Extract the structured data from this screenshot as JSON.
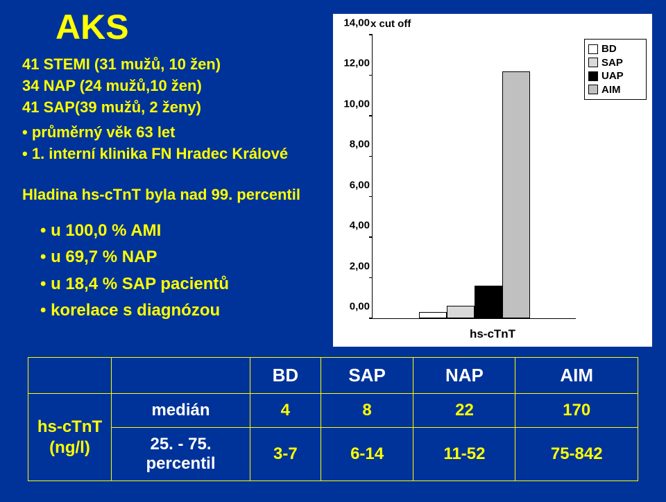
{
  "title": "AKS",
  "lines": {
    "l1": "41 STEMI (31 mužů, 10 žen)",
    "l2": "34 NAP (24 mužů,10 žen)",
    "l3": "41 SAP(39 mužů, 2 ženy)"
  },
  "bullets1": {
    "b1": "průměrný věk 63 let",
    "b2": "1. interní klinika FN Hradec Králové"
  },
  "subhead": "Hladina hs-cTnT byla nad 99. percentil",
  "bullets2": {
    "b1": "u 100,0 % AMI",
    "b2": "u 69,7 % NAP",
    "b3": "u 18,4 % SAP pacientů",
    "b4": "korelace s diagnózou"
  },
  "chart": {
    "type": "bar",
    "y_title": "x cut off",
    "x_label": "hs-cTnT",
    "y_max": 14,
    "ticks": [
      {
        "v": 0.0,
        "label": "0,00"
      },
      {
        "v": 2.0,
        "label": "2,00"
      },
      {
        "v": 4.0,
        "label": "4,00"
      },
      {
        "v": 6.0,
        "label": "6,00"
      },
      {
        "v": 8.0,
        "label": "8,00"
      },
      {
        "v": 10.0,
        "label": "10,00"
      },
      {
        "v": 12.0,
        "label": "12,00"
      },
      {
        "v": 14.0,
        "label": "14,00"
      }
    ],
    "bars": [
      {
        "name": "BD",
        "value": 0.3,
        "color": "#ffffff"
      },
      {
        "name": "SAP",
        "value": 0.6,
        "color": "#d9d9d9"
      },
      {
        "name": "UAP",
        "value": 1.6,
        "color": "#000000"
      },
      {
        "name": "AIM",
        "value": 12.2,
        "color": "#c0c0c0"
      }
    ],
    "legend": [
      {
        "label": "BD",
        "color": "#ffffff"
      },
      {
        "label": "SAP",
        "color": "#d9d9d9"
      },
      {
        "label": "UAP",
        "color": "#000000"
      },
      {
        "label": "AIM",
        "color": "#c0c0c0"
      }
    ],
    "bg": "#ffffff",
    "axis_color": "#000000",
    "tick_fontsize": 15,
    "title_fontsize": 15
  },
  "table": {
    "side_label_1": "hs-cTnT",
    "side_label_2": "(ng/l)",
    "headers": [
      "BD",
      "SAP",
      "NAP",
      "AIM"
    ],
    "rows": [
      {
        "label": "medián",
        "cells": [
          "4",
          "8",
          "22",
          "170"
        ]
      },
      {
        "label": "25. - 75. percentil",
        "cells": [
          "3-7",
          "6-14",
          "11-52",
          "75-842"
        ]
      }
    ],
    "border_color": "#ffff00",
    "header_color": "#ffffff",
    "cell_color": "#ffff00"
  }
}
